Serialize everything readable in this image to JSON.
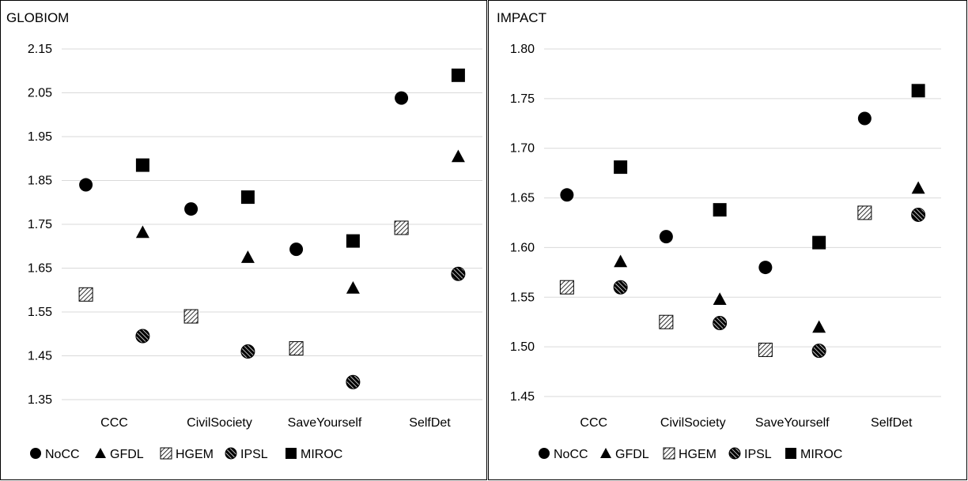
{
  "chart_data": [
    {
      "type": "scatter",
      "title": "GLOBIOM",
      "xlabel": "",
      "ylabel": "",
      "categories": [
        "CCC",
        "CivilSociety",
        "SaveYourself",
        "SelfDet"
      ],
      "ylim": [
        1.35,
        2.15
      ],
      "yticks": [
        "2.15",
        "2.05",
        "1.95",
        "1.85",
        "1.75",
        "1.65",
        "1.55",
        "1.45",
        "1.35"
      ],
      "grid": true,
      "legend": "bottom",
      "series": [
        {
          "name": "NoCC",
          "marker": "circle",
          "offset": -0.3,
          "values": [
            1.84,
            1.785,
            1.693,
            2.038
          ]
        },
        {
          "name": "GFDL",
          "marker": "triangle",
          "offset": 0.3,
          "values": [
            1.732,
            1.675,
            1.605,
            1.905
          ]
        },
        {
          "name": "HGEM",
          "marker": "hatch",
          "offset": -0.3,
          "values": [
            1.59,
            1.54,
            1.467,
            1.742
          ]
        },
        {
          "name": "IPSL",
          "marker": "ipsl",
          "offset": 0.3,
          "values": [
            1.495,
            1.46,
            1.39,
            1.637
          ]
        },
        {
          "name": "MIROC",
          "marker": "square",
          "offset": 0.3,
          "values": [
            1.885,
            1.812,
            1.712,
            2.09
          ]
        }
      ]
    },
    {
      "type": "scatter",
      "title": "IMPACT",
      "xlabel": "",
      "ylabel": "",
      "categories": [
        "CCC",
        "CivilSociety",
        "SaveYourself",
        "SelfDet"
      ],
      "ylim": [
        1.45,
        1.8
      ],
      "yticks": [
        "1.80",
        "1.75",
        "1.70",
        "1.65",
        "1.60",
        "1.55",
        "1.50",
        "1.45"
      ],
      "grid": true,
      "legend": "bottom",
      "series": [
        {
          "name": "NoCC",
          "marker": "circle",
          "offset": -0.3,
          "values": [
            1.653,
            1.611,
            1.58,
            1.73
          ]
        },
        {
          "name": "GFDL",
          "marker": "triangle",
          "offset": 0.3,
          "values": [
            1.586,
            1.548,
            1.52,
            1.66
          ]
        },
        {
          "name": "HGEM",
          "marker": "hatch",
          "offset": -0.3,
          "values": [
            1.56,
            1.525,
            1.497,
            1.635
          ]
        },
        {
          "name": "IPSL",
          "marker": "ipsl",
          "offset": 0.3,
          "values": [
            1.56,
            1.524,
            1.496,
            1.633
          ]
        },
        {
          "name": "MIROC",
          "marker": "square",
          "offset": 0.3,
          "values": [
            1.681,
            1.638,
            1.605,
            1.758
          ]
        }
      ]
    }
  ]
}
